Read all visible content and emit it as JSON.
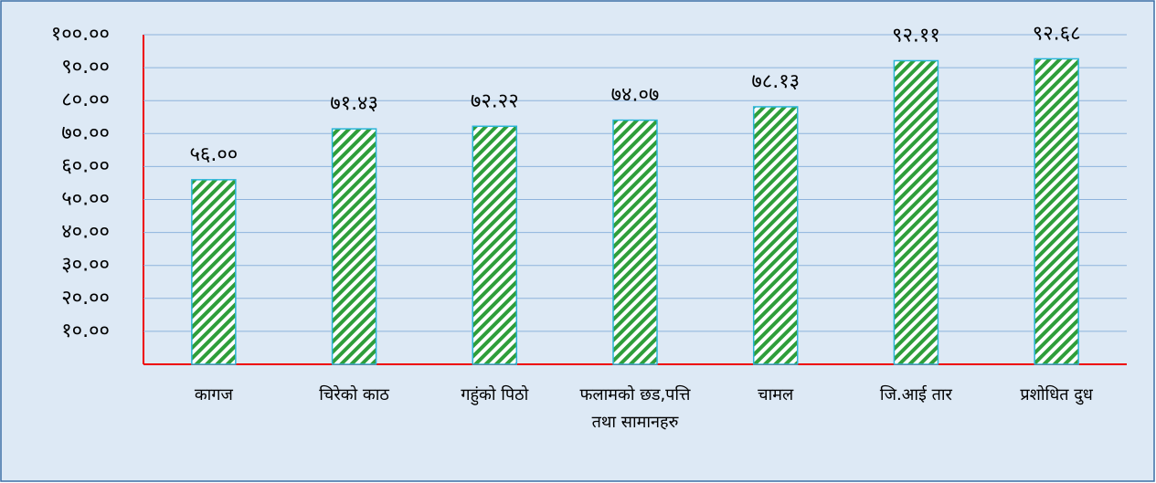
{
  "chart_data": {
    "type": "bar",
    "categories": [
      "कागज",
      "चिरेको काठ",
      "गहुंको पिठो",
      "फलामको छड,पत्ति तथा सामानहरु",
      "चामल",
      "जि.आई तार",
      "प्रशोधित दुध"
    ],
    "values": [
      56.0,
      71.43,
      72.22,
      74.07,
      78.13,
      92.11,
      92.68
    ],
    "value_labels": [
      "५६.००",
      "७१.४३",
      "७२.२२",
      "७४.०७",
      "७८.१३",
      "९२.११",
      "९२.६८"
    ],
    "color": "#2e9e3a",
    "ylim": [
      0,
      100
    ],
    "yticks": [
      {
        "value": 10,
        "label": "१०.००"
      },
      {
        "value": 20,
        "label": "२०.००"
      },
      {
        "value": 30,
        "label": "३०.००"
      },
      {
        "value": 40,
        "label": "४०.००"
      },
      {
        "value": 50,
        "label": "५०.००"
      },
      {
        "value": 60,
        "label": "६०.००"
      },
      {
        "value": 70,
        "label": "७०.००"
      },
      {
        "value": 80,
        "label": "८०.००"
      },
      {
        "value": 90,
        "label": "९०.००"
      },
      {
        "value": 100,
        "label": "१००.००"
      }
    ],
    "grid": true
  }
}
